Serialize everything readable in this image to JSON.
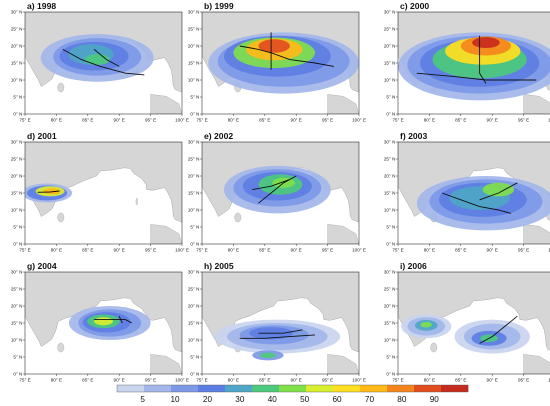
{
  "figure": {
    "panels": [
      {
        "title": "a) 1998"
      },
      {
        "title": "b) 1999"
      },
      {
        "title": "c) 2000"
      },
      {
        "title": "d) 2001"
      },
      {
        "title": "e) 2002"
      },
      {
        "title": "f) 2003"
      },
      {
        "title": "g) 2004"
      },
      {
        "title": "h) 2005"
      },
      {
        "title": "i) 2006"
      }
    ],
    "lon_ticks": [
      "75° E",
      "80° E",
      "85° E",
      "90° E",
      "95° E",
      "100° E"
    ],
    "lat_ticks": [
      "0° N",
      "5° N",
      "10° N",
      "15° N",
      "20° N",
      "25° N",
      "30° N"
    ]
  },
  "colorbar": {
    "levels": [
      "5",
      "10",
      "20",
      "30",
      "40",
      "50",
      "60",
      "70",
      "80",
      "90"
    ],
    "colors": [
      "#c9d4ee",
      "#a3b6ea",
      "#7d98e6",
      "#5d7ee3",
      "#4fa6c6",
      "#4cc97c",
      "#7fe04a",
      "#d9ee2f",
      "#ffe020",
      "#ffba18",
      "#f4851c",
      "#e24d1f",
      "#c62a1e"
    ]
  },
  "colors": {
    "land": "#d6d6d6",
    "coast": "#a8a8a8",
    "sea": "#ffffff",
    "track": "#111111"
  }
}
